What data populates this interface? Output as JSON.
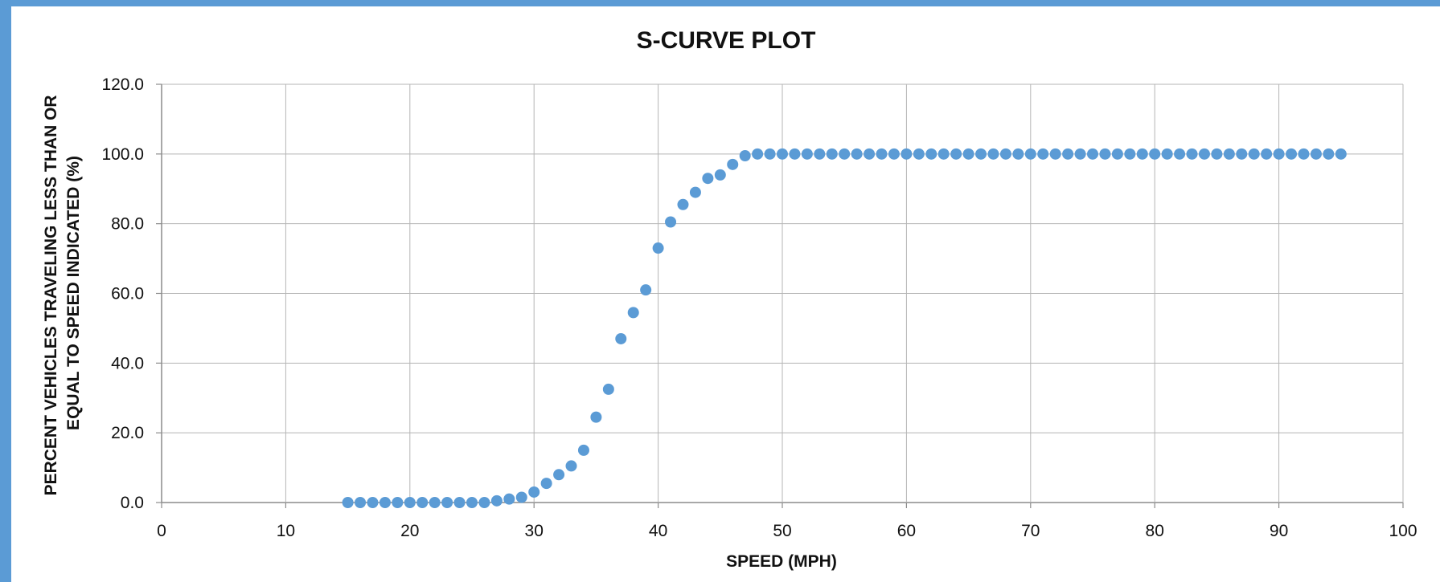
{
  "chart_data": {
    "type": "scatter",
    "title": "S-CURVE PLOT",
    "xlabel": "SPEED (MPH)",
    "ylabel_lines": [
      "PERCENT VEHICLES TRAVELING LESS THAN OR",
      "EQUAL TO SPEED INDICATED (%)"
    ],
    "xlim": [
      0,
      100
    ],
    "ylim": [
      0,
      120
    ],
    "x_ticks": [
      "0",
      "10",
      "20",
      "30",
      "40",
      "50",
      "60",
      "70",
      "80",
      "90",
      "100"
    ],
    "y_ticks": [
      "0.0",
      "20.0",
      "40.0",
      "60.0",
      "80.0",
      "100.0",
      "120.0"
    ],
    "grid": true,
    "marker_color": "#5B9BD5",
    "series": [
      {
        "x": [
          15,
          16,
          17,
          18,
          19,
          20,
          21,
          22,
          23,
          24,
          25,
          26,
          27,
          28,
          29,
          30,
          31,
          32,
          33,
          34,
          35,
          36,
          37,
          38,
          39,
          40,
          41,
          42,
          43,
          44,
          45,
          46,
          47,
          48,
          49,
          50,
          51,
          52,
          53,
          54,
          55,
          56,
          57,
          58,
          59,
          60,
          61,
          62,
          63,
          64,
          65,
          66,
          67,
          68,
          69,
          70,
          71,
          72,
          73,
          74,
          75,
          76,
          77,
          78,
          79,
          80,
          81,
          82,
          83,
          84,
          85,
          86,
          87,
          88,
          89,
          90,
          91,
          92,
          93,
          94,
          95
        ],
        "y": [
          0,
          0,
          0,
          0,
          0,
          0,
          0,
          0,
          0,
          0,
          0,
          0,
          0.5,
          1,
          1.5,
          3,
          5.5,
          8,
          10.5,
          15,
          24.5,
          32.5,
          47,
          54.5,
          61,
          73,
          80.5,
          85.5,
          89,
          93,
          94,
          97,
          99.5,
          100,
          100,
          100,
          100,
          100,
          100,
          100,
          100,
          100,
          100,
          100,
          100,
          100,
          100,
          100,
          100,
          100,
          100,
          100,
          100,
          100,
          100,
          100,
          100,
          100,
          100,
          100,
          100,
          100,
          100,
          100,
          100,
          100,
          100,
          100,
          100,
          100,
          100,
          100,
          100,
          100,
          100,
          100,
          100,
          100,
          100,
          100,
          100
        ]
      }
    ]
  }
}
